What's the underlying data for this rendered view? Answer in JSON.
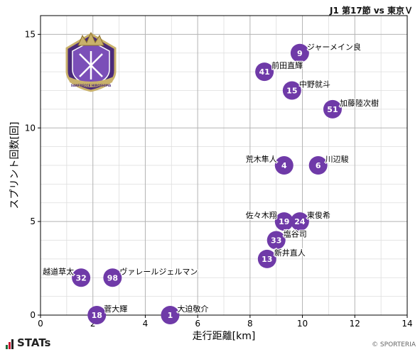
{
  "header": {
    "title": "J1 第17節 vs 東京Ｖ"
  },
  "footer": {
    "brand": "STATs",
    "credit": "© SPORTERIA"
  },
  "logo": {
    "icon": "sanfrecce-hiroshima-crest-icon",
    "text": "SANFRECCE HIROSHIMA"
  },
  "colors": {
    "marker": "#6f3aa8",
    "marker_text": "#ffffff",
    "grid_major": "#b3b3b3",
    "grid_minor": "#dddddd"
  },
  "chart_data": {
    "type": "scatter",
    "xlabel": "走行距離[km]",
    "ylabel": "スプリント回数[回]",
    "xlim": [
      0,
      14
    ],
    "ylim": [
      0,
      16
    ],
    "xticks": [
      0,
      2,
      4,
      6,
      8,
      10,
      12,
      14
    ],
    "yticks": [
      0,
      5,
      10,
      15
    ],
    "grid": true,
    "points": [
      {
        "number": "9",
        "name": "ジャーメイン良",
        "x": 9.9,
        "y": 14
      },
      {
        "number": "41",
        "name": "前田直輝",
        "x": 8.55,
        "y": 13
      },
      {
        "number": "15",
        "name": "中野就斗",
        "x": 9.6,
        "y": 12
      },
      {
        "number": "51",
        "name": "加藤陸次樹",
        "x": 11.15,
        "y": 11
      },
      {
        "number": "4",
        "name": "荒木隼人",
        "x": 9.3,
        "y": 8
      },
      {
        "number": "6",
        "name": "川辺駿",
        "x": 10.6,
        "y": 8
      },
      {
        "number": "19",
        "name": "佐々木翔",
        "x": 9.3,
        "y": 5
      },
      {
        "number": "24",
        "name": "東俊希",
        "x": 9.9,
        "y": 5
      },
      {
        "number": "33",
        "name": "塩谷司",
        "x": 9.0,
        "y": 4
      },
      {
        "number": "13",
        "name": "新井直人",
        "x": 8.65,
        "y": 3
      },
      {
        "number": "32",
        "name": "越道草太",
        "x": 1.55,
        "y": 2
      },
      {
        "number": "98",
        "name": "ヴァレールジェルマン",
        "x": 2.75,
        "y": 2
      },
      {
        "number": "18",
        "name": "菅大輝",
        "x": 2.15,
        "y": 0
      },
      {
        "number": "1",
        "name": "大迫敬介",
        "x": 4.95,
        "y": 0
      }
    ]
  }
}
